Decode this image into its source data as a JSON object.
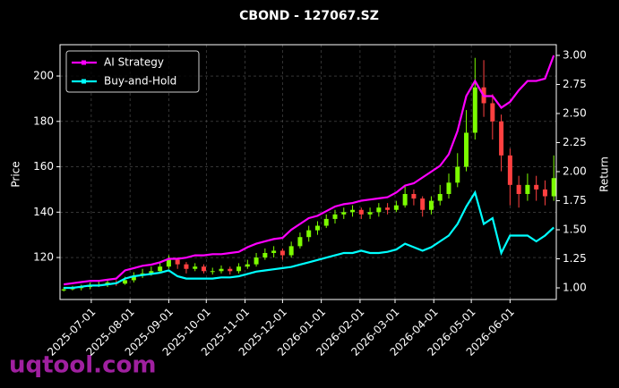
{
  "chart_data": {
    "type": "candlestick",
    "title": "CBOND - 127067.SZ",
    "y_label": "Price",
    "y2_label": "Return",
    "watermark": "uqtool.com",
    "x": [
      "2025-06-09",
      "2025-06-16",
      "2025-06-23",
      "2025-06-30",
      "2025-07-07",
      "2025-07-14",
      "2025-07-21",
      "2025-07-28",
      "2025-08-04",
      "2025-08-11",
      "2025-08-18",
      "2025-08-25",
      "2025-09-01",
      "2025-09-08",
      "2025-09-15",
      "2025-09-22",
      "2025-09-29",
      "2025-10-06",
      "2025-10-13",
      "2025-10-20",
      "2025-10-27",
      "2025-11-03",
      "2025-11-10",
      "2025-11-17",
      "2025-11-24",
      "2025-12-01",
      "2025-12-08",
      "2025-12-15",
      "2025-12-22",
      "2025-12-29",
      "2026-01-05",
      "2026-01-12",
      "2026-01-19",
      "2026-01-26",
      "2026-02-02",
      "2026-02-09",
      "2026-02-16",
      "2026-02-23",
      "2026-03-02",
      "2026-03-09",
      "2026-03-16",
      "2026-03-23",
      "2026-03-30",
      "2026-04-06",
      "2026-04-13",
      "2026-04-20",
      "2026-04-27",
      "2026-05-04",
      "2026-05-11",
      "2026-05-18",
      "2026-05-25",
      "2026-06-01",
      "2026-06-08",
      "2026-06-15",
      "2026-06-22",
      "2026-06-29",
      "2026-07-06"
    ],
    "open": [
      105.5,
      106,
      106.5,
      107,
      108,
      108,
      109,
      108.5,
      110,
      112,
      113,
      114,
      116,
      119,
      117,
      115,
      116,
      114,
      114,
      115,
      114,
      116,
      117,
      120,
      122,
      123,
      121,
      125,
      129,
      132,
      134,
      137,
      139,
      140,
      141,
      139,
      140,
      142,
      141,
      143,
      148,
      146,
      141,
      145,
      148,
      153,
      160,
      175,
      195,
      188,
      180,
      165,
      152,
      148,
      152,
      150,
      147
    ],
    "high": [
      107,
      107.5,
      108,
      109,
      109.5,
      110,
      110,
      111.5,
      113.5,
      115,
      116,
      118,
      121,
      120,
      118,
      117.5,
      117,
      115.5,
      116.5,
      116,
      117.5,
      119,
      122,
      124,
      125,
      124,
      127,
      131,
      134,
      136,
      139,
      141,
      142,
      143,
      142,
      142,
      144,
      144,
      145,
      152,
      150,
      147,
      147,
      152,
      157,
      166,
      185,
      208,
      207,
      192,
      183,
      168,
      156,
      157,
      156,
      154,
      165
    ],
    "low": [
      105,
      105.5,
      105.5,
      106,
      107,
      107,
      107.5,
      108,
      109,
      111,
      112,
      113,
      115,
      115,
      113,
      114,
      113,
      112.5,
      113,
      112.5,
      113,
      115,
      116,
      119,
      120,
      119,
      120,
      124,
      127,
      130,
      133,
      135,
      137,
      138,
      137,
      137,
      138,
      139,
      140,
      142,
      143,
      138,
      139,
      143,
      146,
      151,
      158,
      172,
      182,
      172,
      158,
      143,
      142,
      145,
      145,
      143,
      145
    ],
    "close": [
      106,
      106.5,
      107,
      108,
      108,
      109,
      108.5,
      110,
      112,
      113,
      114,
      116,
      119,
      117,
      115,
      116,
      114,
      114,
      115,
      114,
      116,
      117,
      120,
      122,
      123,
      121,
      125,
      129,
      132,
      134,
      137,
      139,
      140,
      141,
      139,
      140,
      142,
      141,
      143,
      148,
      146,
      141,
      145,
      148,
      153,
      160,
      175,
      195,
      188,
      180,
      165,
      152,
      148,
      152,
      150,
      147,
      155
    ],
    "up_color": "#7cfc00",
    "down_color": "#ff4040",
    "series": [
      {
        "name": "AI Strategy",
        "color": "#ff00ff",
        "axis": "y2",
        "values": [
          1.03,
          1.04,
          1.05,
          1.06,
          1.06,
          1.07,
          1.08,
          1.15,
          1.17,
          1.19,
          1.2,
          1.22,
          1.25,
          1.25,
          1.26,
          1.28,
          1.28,
          1.29,
          1.29,
          1.3,
          1.31,
          1.35,
          1.38,
          1.4,
          1.42,
          1.43,
          1.5,
          1.55,
          1.6,
          1.62,
          1.66,
          1.7,
          1.72,
          1.73,
          1.75,
          1.76,
          1.77,
          1.78,
          1.82,
          1.88,
          1.9,
          1.95,
          2.0,
          2.05,
          2.15,
          2.35,
          2.65,
          2.78,
          2.65,
          2.65,
          2.55,
          2.6,
          2.7,
          2.78,
          2.78,
          2.8,
          3.0
        ]
      },
      {
        "name": "Buy-and-Hold",
        "color": "#00ffff",
        "axis": "y2",
        "values": [
          1.0,
          1.0,
          1.01,
          1.02,
          1.02,
          1.03,
          1.04,
          1.08,
          1.1,
          1.11,
          1.12,
          1.13,
          1.15,
          1.1,
          1.08,
          1.08,
          1.08,
          1.08,
          1.09,
          1.09,
          1.1,
          1.12,
          1.14,
          1.15,
          1.16,
          1.17,
          1.18,
          1.2,
          1.22,
          1.24,
          1.26,
          1.28,
          1.3,
          1.3,
          1.32,
          1.3,
          1.3,
          1.31,
          1.33,
          1.38,
          1.35,
          1.32,
          1.35,
          1.4,
          1.45,
          1.55,
          1.7,
          1.82,
          1.55,
          1.6,
          1.3,
          1.45,
          1.45,
          1.45,
          1.4,
          1.45,
          1.52
        ]
      }
    ],
    "xlim": [
      "2025-06-06",
      "2026-07-08"
    ],
    "xticks": [
      "2025-07-01",
      "2025-08-01",
      "2025-09-01",
      "2025-10-01",
      "2025-11-01",
      "2025-12-01",
      "2026-01-01",
      "2026-02-01",
      "2026-03-01",
      "2026-04-01",
      "2026-05-01",
      "2026-06-01"
    ],
    "ylim": [
      101.5,
      213.8
    ],
    "yticks": [
      120,
      140,
      160,
      180,
      200
    ],
    "y2lim": [
      0.9,
      3.092
    ],
    "y2ticks": [
      {
        "value": 1,
        "label": "1.00"
      },
      {
        "value": 1.25,
        "label": "1.25"
      },
      {
        "value": 1.5,
        "label": "1.50"
      },
      {
        "value": 1.75,
        "label": "1.75"
      },
      {
        "value": 2,
        "label": "2.00"
      },
      {
        "value": 2.25,
        "label": "2.25"
      },
      {
        "value": 2.5,
        "label": "2.50"
      },
      {
        "value": 2.75,
        "label": "2.75"
      },
      {
        "value": 3,
        "label": "3.00"
      }
    ],
    "grid": true,
    "legend": "upper left"
  }
}
